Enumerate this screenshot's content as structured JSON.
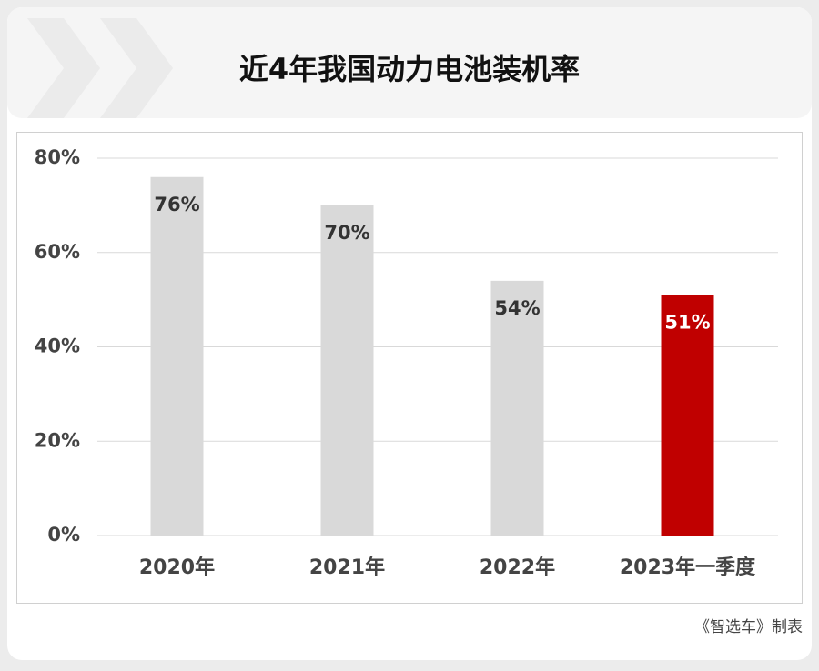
{
  "chart_data": {
    "type": "bar",
    "title": "近4年我国动力电池装机率",
    "categories": [
      "2020年",
      "2021年",
      "2022年",
      "2023年一季度"
    ],
    "values": [
      76,
      70,
      54,
      51
    ],
    "value_labels": [
      "76%",
      "70%",
      "54%",
      "51%"
    ],
    "colors": [
      "#d9d9d9",
      "#d9d9d9",
      "#d9d9d9",
      "#c00000"
    ],
    "value_label_colors": [
      "#333333",
      "#333333",
      "#333333",
      "#ffffff"
    ],
    "ylim": [
      0,
      80
    ],
    "yticks": [
      {
        "value": 0,
        "label": "0%"
      },
      {
        "value": 20,
        "label": "20%"
      },
      {
        "value": 40,
        "label": "40%"
      },
      {
        "value": 60,
        "label": "60%"
      },
      {
        "value": 80,
        "label": "80%"
      }
    ],
    "grid": true,
    "source": "《智选车》制表"
  }
}
